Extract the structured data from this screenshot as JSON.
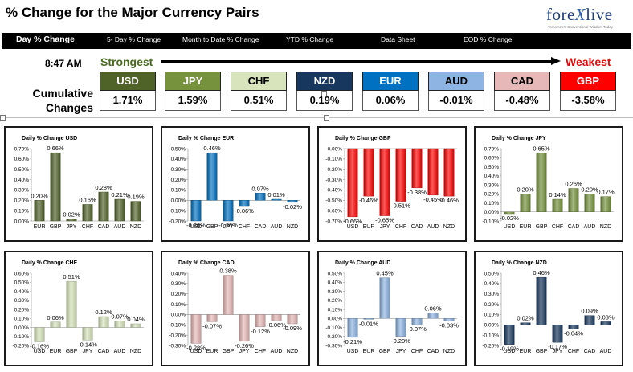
{
  "header": {
    "title": "% Change for the Major Currency Pairs",
    "logo": {
      "prefix": "fore",
      "x": "X",
      "suffix": "live",
      "tagline": "Tomorrow's Conventional Wisdom Today"
    }
  },
  "tabs": [
    {
      "label": "Day % Change",
      "active": true
    },
    {
      "label": "5- Day % Change"
    },
    {
      "label": "Month to Date % Change"
    },
    {
      "label": "YTD % Change"
    },
    {
      "label": "Data Sheet"
    },
    {
      "label": "EOD % Change"
    }
  ],
  "summary": {
    "time": "8:47 AM",
    "strongest_label": "Strongest",
    "weakest_label": "Weakest",
    "cumulative_label_1": "Cumulative",
    "cumulative_label_2": "Changes",
    "currencies": [
      {
        "code": "USD",
        "value": "1.71%",
        "color": "#4f6228"
      },
      {
        "code": "JPY",
        "value": "1.59%",
        "color": "#76923c"
      },
      {
        "code": "CHF",
        "value": "0.51%",
        "color": "#d7e4bc"
      },
      {
        "code": "NZD",
        "value": "0.19%",
        "color": "#17375e"
      },
      {
        "code": "EUR",
        "value": "0.06%",
        "color": "#0070c0"
      },
      {
        "code": "AUD",
        "value": "-0.01%",
        "color": "#8db4e2"
      },
      {
        "code": "CAD",
        "value": "-0.48%",
        "color": "#e6b9b8"
      },
      {
        "code": "GBP",
        "value": "-3.58%",
        "color": "#ff0000"
      }
    ]
  },
  "chart_data": [
    {
      "type": "bar",
      "title": "Daily % Change USD",
      "categories": [
        "EUR",
        "GBP",
        "JPY",
        "CHF",
        "CAD",
        "AUD",
        "NZD"
      ],
      "values": [
        0.2,
        0.66,
        0.02,
        0.16,
        0.28,
        0.21,
        0.19
      ],
      "labels": [
        "0.20%",
        "0.66%",
        "0.02%",
        "0.16%",
        "0.28%",
        "0.21%",
        "0.19%"
      ],
      "ylim": [
        0,
        0.7
      ],
      "step": 0.1,
      "ticks": [
        "0.00%",
        "0.10%",
        "0.20%",
        "0.30%",
        "0.40%",
        "0.50%",
        "0.60%",
        "0.70%"
      ],
      "color": "#4f6228"
    },
    {
      "type": "bar",
      "title": "Daily % Change EUR",
      "categories": [
        "USD",
        "GBP",
        "JPY",
        "CHF",
        "CAD",
        "AUD",
        "NZD"
      ],
      "values": [
        -0.2,
        0.46,
        -0.2,
        -0.06,
        0.07,
        0.01,
        -0.02
      ],
      "labels": [
        "-0.20%",
        "0.46%",
        "-0.20%",
        "-0.06%",
        "0.07%",
        "0.01%",
        "-0.02%"
      ],
      "ylim": [
        -0.2,
        0.5
      ],
      "step": 0.1,
      "ticks": [
        "-0.20%",
        "-0.10%",
        "0.00%",
        "0.10%",
        "0.20%",
        "0.30%",
        "0.40%",
        "0.50%"
      ],
      "color": "#0070c0"
    },
    {
      "type": "bar",
      "title": "Daily % Change GBP",
      "categories": [
        "USD",
        "EUR",
        "JPY",
        "CHF",
        "CAD",
        "AUD",
        "NZD"
      ],
      "values": [
        -0.66,
        -0.46,
        -0.65,
        -0.51,
        -0.38,
        -0.45,
        -0.46
      ],
      "labels": [
        "-0.66%",
        "-0.46%",
        "-0.65%",
        "-0.51%",
        "-0.38%",
        "-0.45%",
        "-0.46%"
      ],
      "ylim": [
        -0.7,
        0
      ],
      "step": 0.1,
      "ticks": [
        "-0.70%",
        "-0.60%",
        "-0.50%",
        "-0.40%",
        "-0.30%",
        "-0.20%",
        "-0.10%",
        "0.00%"
      ],
      "color": "#ff0000"
    },
    {
      "type": "bar",
      "title": "Daily % Change JPY",
      "categories": [
        "USD",
        "EUR",
        "GBP",
        "CHF",
        "CAD",
        "AUD",
        "NZD"
      ],
      "values": [
        -0.02,
        0.2,
        0.65,
        0.14,
        0.26,
        0.2,
        0.17
      ],
      "labels": [
        "-0.02%",
        "0.20%",
        "0.65%",
        "0.14%",
        "0.26%",
        "0.20%",
        "0.17%"
      ],
      "ylim": [
        -0.1,
        0.7
      ],
      "step": 0.1,
      "ticks": [
        "-0.10%",
        "0.00%",
        "0.10%",
        "0.20%",
        "0.30%",
        "0.40%",
        "0.50%",
        "0.60%",
        "0.70%"
      ],
      "color": "#76923c"
    },
    {
      "type": "bar",
      "title": "Daily % Change CHF",
      "categories": [
        "USD",
        "EUR",
        "GBP",
        "JPY",
        "CAD",
        "AUD",
        "NZD"
      ],
      "values": [
        -0.16,
        0.06,
        0.51,
        -0.14,
        0.12,
        0.07,
        0.04
      ],
      "labels": [
        "-0.16%",
        "0.06%",
        "0.51%",
        "-0.14%",
        "0.12%",
        "0.07%",
        "0.04%"
      ],
      "ylim": [
        -0.2,
        0.6
      ],
      "step": 0.1,
      "ticks": [
        "-0.20%",
        "-0.10%",
        "0.00%",
        "0.10%",
        "0.20%",
        "0.30%",
        "0.40%",
        "0.50%",
        "0.60%"
      ],
      "color": "#d7e4bc"
    },
    {
      "type": "bar",
      "title": "Daily % Change CAD",
      "categories": [
        "USD",
        "EUR",
        "GBP",
        "JPY",
        "CHF",
        "AUD",
        "NZD"
      ],
      "values": [
        -0.28,
        -0.07,
        0.38,
        -0.26,
        -0.12,
        -0.06,
        -0.09
      ],
      "labels": [
        "-0.28%",
        "-0.07%",
        "0.38%",
        "-0.26%",
        "-0.12%",
        "-0.06%",
        "-0.09%"
      ],
      "ylim": [
        -0.3,
        0.4
      ],
      "step": 0.1,
      "ticks": [
        "-0.30%",
        "-0.20%",
        "-0.10%",
        "0.00%",
        "0.10%",
        "0.20%",
        "0.30%",
        "0.40%"
      ],
      "color": "#e6b9b8"
    },
    {
      "type": "bar",
      "title": "Daily % Change AUD",
      "categories": [
        "USD",
        "EUR",
        "GBP",
        "JPY",
        "CHF",
        "CAD",
        "NZD"
      ],
      "values": [
        -0.21,
        -0.01,
        0.45,
        -0.2,
        -0.07,
        0.06,
        -0.03
      ],
      "labels": [
        "-0.21%",
        "-0.01%",
        "0.45%",
        "-0.20%",
        "-0.07%",
        "0.06%",
        "-0.03%"
      ],
      "ylim": [
        -0.3,
        0.5
      ],
      "step": 0.1,
      "ticks": [
        "-0.30%",
        "-0.20%",
        "-0.10%",
        "0.00%",
        "0.10%",
        "0.20%",
        "0.30%",
        "0.40%",
        "0.50%"
      ],
      "color": "#8db4e2"
    },
    {
      "type": "bar",
      "title": "Daily % Change NZD",
      "categories": [
        "USD",
        "EUR",
        "GBP",
        "JPY",
        "CHF",
        "CAD",
        "AUD"
      ],
      "values": [
        -0.19,
        0.02,
        0.46,
        -0.17,
        -0.04,
        0.09,
        0.03
      ],
      "labels": [
        "-0.19%",
        "0.02%",
        "0.46%",
        "-0.17%",
        "-0.04%",
        "0.09%",
        "0.03%"
      ],
      "ylim": [
        -0.2,
        0.5
      ],
      "step": 0.1,
      "ticks": [
        "-0.20%",
        "-0.10%",
        "0.00%",
        "0.10%",
        "0.20%",
        "0.30%",
        "0.40%",
        "0.50%"
      ],
      "color": "#17375e"
    }
  ]
}
